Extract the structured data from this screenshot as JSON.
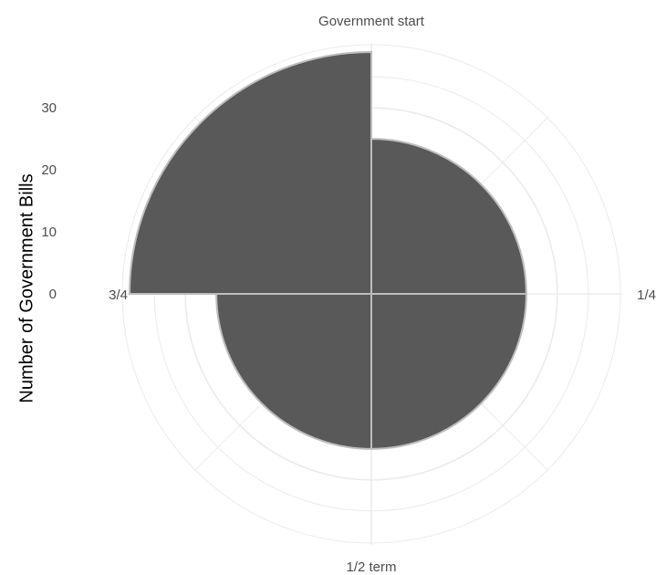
{
  "chart_data": {
    "type": "bar",
    "coord": "polar",
    "categories": [
      "Government start",
      "1/4",
      "1/2 term",
      "3/4"
    ],
    "values": [
      25,
      25,
      25,
      39
    ],
    "ylabel": "Number of Government Bills",
    "y_ticks": [
      0,
      10,
      20,
      30
    ],
    "ylim": [
      0,
      39
    ],
    "grid": true,
    "bar_color": "#595959",
    "bar_border_color": "#bdbdbd",
    "grid_color": "#ebebeb"
  }
}
